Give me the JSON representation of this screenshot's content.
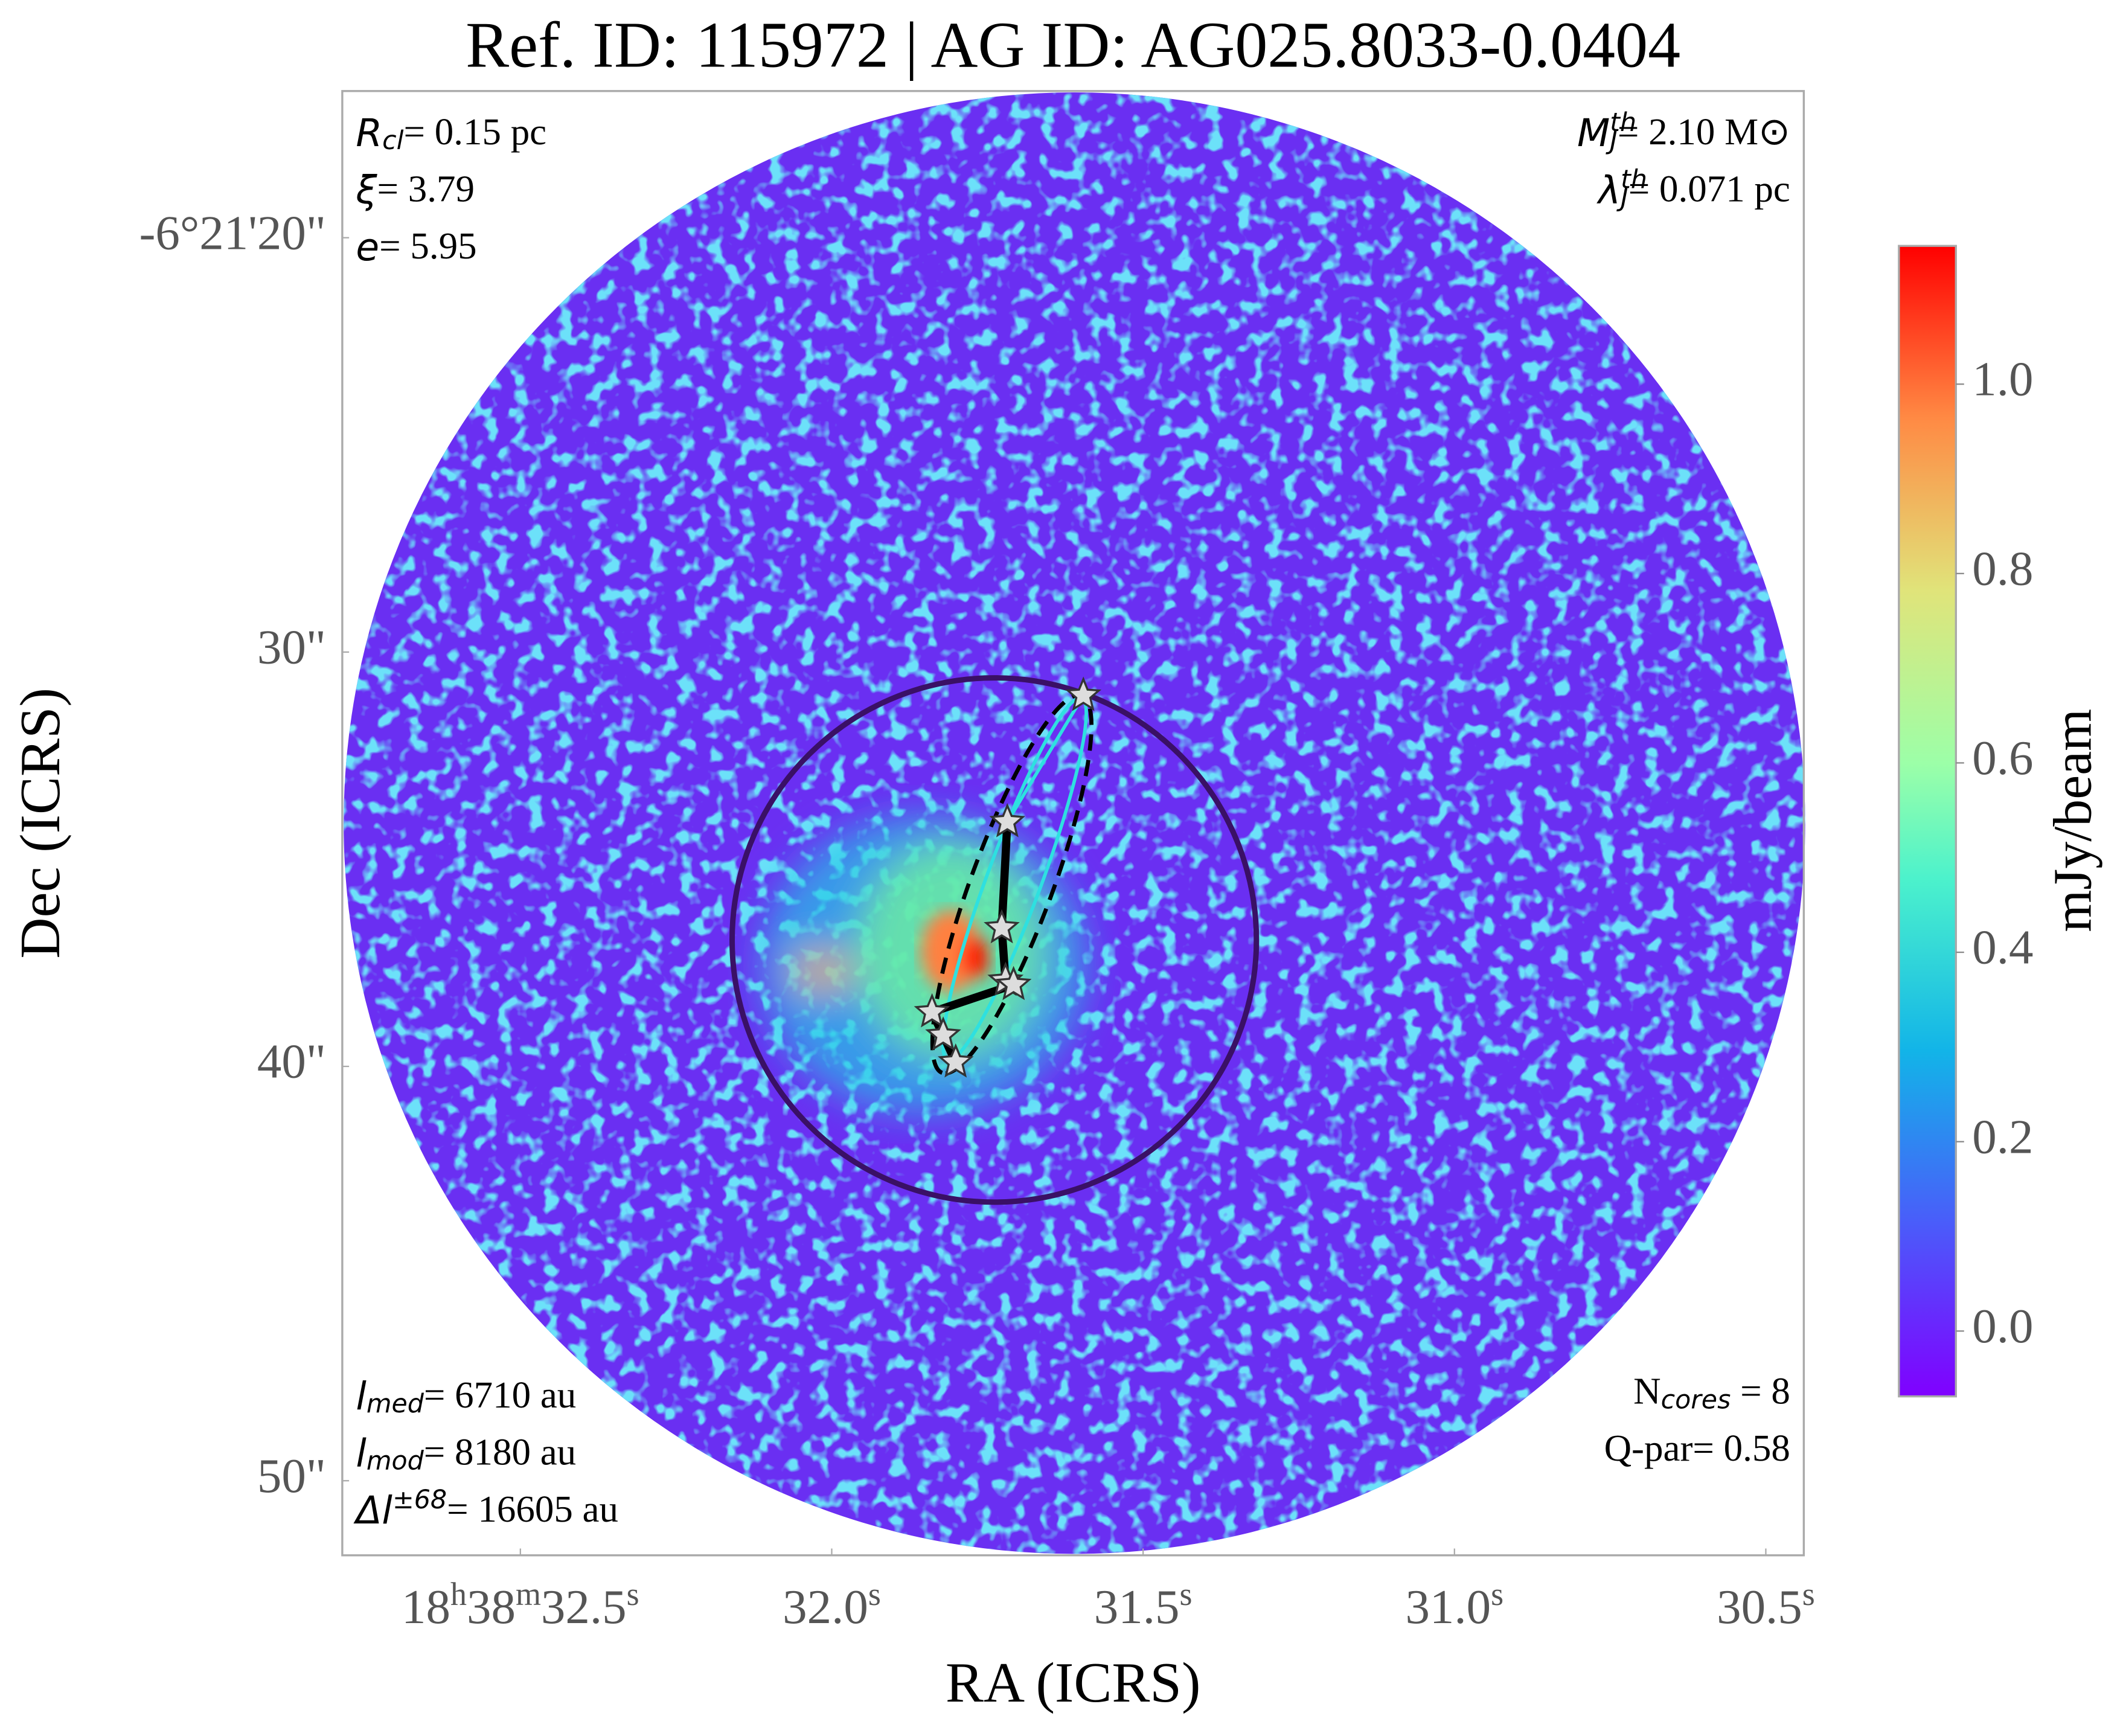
{
  "chart_data": {
    "type": "image",
    "title": "Ref. ID: 115972 | AG ID: AG025.8033-0.0404",
    "xlabel": "RA (ICRS)",
    "ylabel": "Dec (ICRS)",
    "xlim": [
      32.786,
      30.439
    ],
    "xticks": [
      {
        "value": 32.5,
        "label": "18h38m32.5s"
      },
      {
        "value": 32.0,
        "label": "32.0s"
      },
      {
        "value": 31.5,
        "label": "31.5s"
      },
      {
        "value": 31.0,
        "label": "31.0s"
      },
      {
        "value": 30.5,
        "label": "30.5s"
      }
    ],
    "ylim": [
      16.46,
      51.8
    ],
    "yticks": [
      {
        "value": 20,
        "label": "-6°21'20\""
      },
      {
        "value": 30,
        "label": "30\""
      },
      {
        "value": 40,
        "label": "40\""
      },
      {
        "value": 50,
        "label": "50\""
      }
    ],
    "colorbar": {
      "label": "mJy/beam",
      "lim": [
        -0.069,
        1.146
      ],
      "ticks": [
        {
          "value": 0,
          "label": "0.0"
        },
        0.2,
        0.4,
        0.6,
        0.8,
        {
          "value": 1,
          "label": "1.0"
        }
      ]
    },
    "cores": {
      "x": [
        31.596,
        31.718,
        31.727,
        31.721,
        31.708,
        31.839,
        31.821,
        31.801
      ],
      "y": [
        31.05,
        34.1,
        36.66,
        37.93,
        38.03,
        38.69,
        39.25,
        39.9
      ]
    },
    "annotations": {
      "top_left": [
        {
          "symbol": "R",
          "sub": "cl",
          "text": "= 0.15 pc"
        },
        {
          "symbol": "ξ",
          "text": "= 3.79"
        },
        {
          "symbol": "e",
          "text": "= 5.95"
        }
      ],
      "top_right": [
        {
          "symbol": "M",
          "sup": "th",
          "sub": "J",
          "text": "= 2.10 M⊙"
        },
        {
          "symbol": "λ",
          "sup": "th",
          "sub": "J",
          "text": "= 0.071 pc"
        }
      ],
      "bottom_left": [
        {
          "symbol": "l",
          "sub": "med",
          "text": "= 6710 au"
        },
        {
          "symbol": "l",
          "sub": "mod",
          "text": "= 8180 au"
        },
        {
          "symbol": "Δl",
          "sup": "±68",
          "text": "= 16605 au"
        }
      ],
      "bottom_right": [
        {
          "symbol": "N",
          "italic": false,
          "sub": "cores",
          "text": " = 8"
        },
        {
          "text": "Q-par= 0.58"
        }
      ]
    }
  }
}
